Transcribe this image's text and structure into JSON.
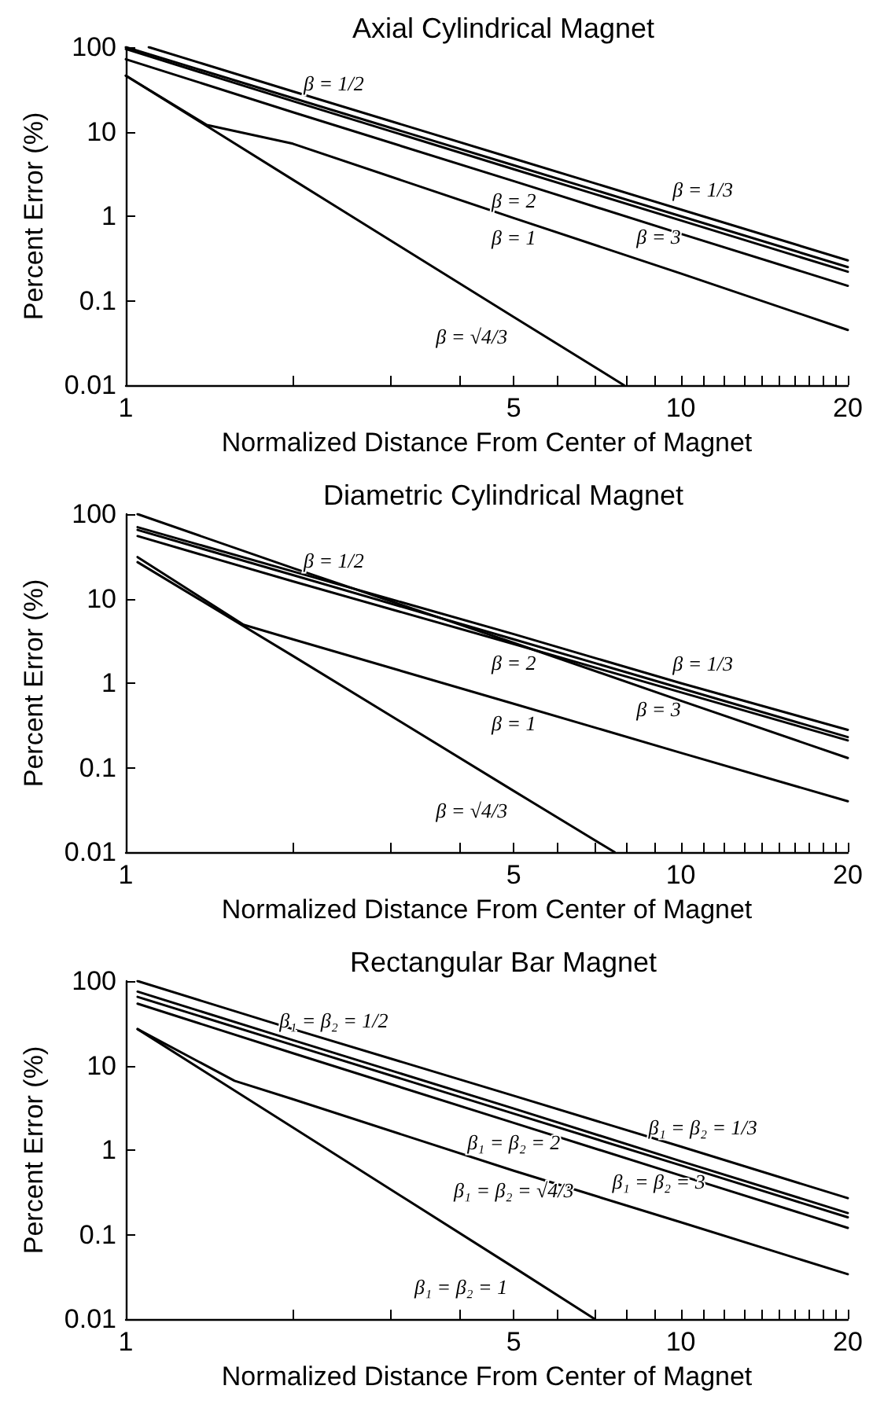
{
  "chart_data": [
    {
      "type": "line",
      "title": "Axial Cylindrical Magnet",
      "xlabel": "Normalized Distance From Center of Magnet",
      "ylabel": "Percent Error (%)",
      "log": "xy",
      "xlim": [
        1,
        20
      ],
      "ylim": [
        0.01,
        100
      ],
      "xticks": [
        1,
        {
          "value": 2,
          "label": null
        },
        {
          "value": 3,
          "label": null
        },
        {
          "value": 4,
          "label": null
        },
        5,
        {
          "value": 6,
          "label": null
        },
        {
          "value": 7,
          "label": null
        },
        {
          "value": 8,
          "label": null
        },
        {
          "value": 9,
          "label": null
        },
        10,
        {
          "value": 11,
          "label": null
        },
        {
          "value": 12,
          "label": null
        },
        {
          "value": 13,
          "label": null
        },
        {
          "value": 14,
          "label": null
        },
        {
          "value": 15,
          "label": null
        },
        {
          "value": 16,
          "label": null
        },
        {
          "value": 17,
          "label": null
        },
        {
          "value": 18,
          "label": null
        },
        {
          "value": 19,
          "label": null
        },
        20
      ],
      "yticks": [
        0.01,
        0.1,
        1,
        10,
        100
      ],
      "series": [
        {
          "name": "β = 1/3",
          "color": "#000000",
          "x": [
            1.1,
            2,
            5,
            10,
            20
          ],
          "values": [
            100,
            30,
            4.8,
            1.2,
            0.3
          ]
        },
        {
          "name": "β = 1/2",
          "color": "#000000",
          "x": [
            1,
            2,
            5,
            10,
            20
          ],
          "values": [
            100,
            25,
            4,
            1,
            0.25
          ]
        },
        {
          "name": "β = 3",
          "color": "#000000",
          "x": [
            1,
            2,
            5,
            10,
            20
          ],
          "values": [
            95,
            23,
            3.6,
            0.89,
            0.22
          ]
        },
        {
          "name": "β = 2",
          "color": "#000000",
          "x": [
            1,
            2,
            5,
            10,
            20
          ],
          "values": [
            72,
            17,
            2.6,
            0.62,
            0.15
          ]
        },
        {
          "name": "β = 1",
          "color": "#000000",
          "x": [
            1,
            1.4,
            2,
            5,
            10,
            20
          ],
          "values": [
            46,
            12,
            7.2,
            0.95,
            0.21,
            0.045
          ]
        },
        {
          "name": "β = √4/3",
          "color": "#000000",
          "x": [
            1,
            2,
            5,
            7.9
          ],
          "values": [
            46,
            2.7,
            0.064,
            0.01
          ]
        }
      ]
    },
    {
      "type": "line",
      "title": "Diametric Cylindrical Magnet",
      "xlabel": "Normalized Distance From Center of Magnet",
      "ylabel": "Percent Error (%)",
      "log": "xy",
      "xlim": [
        1,
        20
      ],
      "ylim": [
        0.01,
        100
      ],
      "xticks": [
        1,
        {
          "value": 2,
          "label": null
        },
        {
          "value": 3,
          "label": null
        },
        {
          "value": 4,
          "label": null
        },
        5,
        {
          "value": 6,
          "label": null
        },
        {
          "value": 7,
          "label": null
        },
        {
          "value": 8,
          "label": null
        },
        {
          "value": 9,
          "label": null
        },
        10,
        {
          "value": 11,
          "label": null
        },
        {
          "value": 12,
          "label": null
        },
        {
          "value": 13,
          "label": null
        },
        {
          "value": 14,
          "label": null
        },
        {
          "value": 15,
          "label": null
        },
        {
          "value": 16,
          "label": null
        },
        {
          "value": 17,
          "label": null
        },
        {
          "value": 18,
          "label": null
        },
        {
          "value": 19,
          "label": null
        },
        20
      ],
      "yticks": [
        0.01,
        0.1,
        1,
        10,
        100
      ],
      "series": [
        {
          "name": "β = 1/3",
          "color": "#000000",
          "x": [
            1.05,
            2,
            5,
            10,
            20
          ],
          "values": [
            70,
            21,
            3.8,
            1,
            0.28
          ]
        },
        {
          "name": "β = 1/2",
          "color": "#000000",
          "x": [
            1.05,
            2,
            5,
            10,
            20
          ],
          "values": [
            65,
            19,
            3.3,
            0.87,
            0.23
          ]
        },
        {
          "name": "β = 3",
          "color": "#000000",
          "x": [
            1.05,
            2,
            5,
            10,
            20
          ],
          "values": [
            55,
            16,
            2.9,
            0.78,
            0.21
          ]
        },
        {
          "name": "β = 2",
          "color": "#000000",
          "x": [
            1.05,
            2,
            5,
            10,
            20
          ],
          "values": [
            100,
            23,
            3,
            0.62,
            0.13
          ]
        },
        {
          "name": "β = 1",
          "color": "#000000",
          "x": [
            1.05,
            1.63,
            2,
            5,
            10,
            20
          ],
          "values": [
            31,
            4.9,
            3.3,
            0.57,
            0.15,
            0.04
          ]
        },
        {
          "name": "β = √4/3",
          "color": "#000000",
          "x": [
            1.05,
            2,
            5,
            7.6
          ],
          "values": [
            27,
            2.1,
            0.053,
            0.01
          ]
        }
      ]
    },
    {
      "type": "line",
      "title": "Rectangular Bar Magnet",
      "xlabel": "Normalized Distance From Center of Magnet",
      "ylabel": "Percent Error (%)",
      "log": "xy",
      "xlim": [
        1,
        20
      ],
      "ylim": [
        0.01,
        100
      ],
      "xticks": [
        1,
        {
          "value": 2,
          "label": null
        },
        {
          "value": 3,
          "label": null
        },
        {
          "value": 4,
          "label": null
        },
        5,
        {
          "value": 6,
          "label": null
        },
        {
          "value": 7,
          "label": null
        },
        {
          "value": 8,
          "label": null
        },
        {
          "value": 9,
          "label": null
        },
        10,
        {
          "value": 11,
          "label": null
        },
        {
          "value": 12,
          "label": null
        },
        {
          "value": 13,
          "label": null
        },
        {
          "value": 14,
          "label": null
        },
        {
          "value": 15,
          "label": null
        },
        {
          "value": 16,
          "label": null
        },
        {
          "value": 17,
          "label": null
        },
        {
          "value": 18,
          "label": null
        },
        {
          "value": 19,
          "label": null
        },
        20
      ],
      "yticks": [
        0.01,
        0.1,
        1,
        10,
        100
      ],
      "series": [
        {
          "name": "β₁ = β₂ = 1/3",
          "color": "#000000",
          "x": [
            1.05,
            2,
            5,
            10,
            20
          ],
          "values": [
            100,
            27,
            4.4,
            1.1,
            0.27
          ]
        },
        {
          "name": "β₁ = β₂ = 1/2",
          "color": "#000000",
          "x": [
            1.05,
            2,
            5,
            10,
            20
          ],
          "values": [
            75,
            20,
            3.1,
            0.74,
            0.18
          ]
        },
        {
          "name": "β₁ = β₂ = 3",
          "color": "#000000",
          "x": [
            1.05,
            2,
            5,
            10,
            20
          ],
          "values": [
            65,
            17.5,
            2.7,
            0.66,
            0.16
          ]
        },
        {
          "name": "β₁ = β₂ = 2",
          "color": "#000000",
          "x": [
            1.05,
            2,
            5,
            10,
            20
          ],
          "values": [
            54,
            14,
            2.1,
            0.5,
            0.12
          ]
        },
        {
          "name": "β₁ = β₂ = √4/3",
          "color": "#000000",
          "x": [
            1.05,
            1.57,
            2,
            5,
            10,
            20
          ],
          "values": [
            27,
            6.6,
            4,
            0.57,
            0.14,
            0.034
          ]
        },
        {
          "name": "β₁ = β₂ = 1",
          "color": "#000000",
          "x": [
            1.05,
            2,
            5,
            7
          ],
          "values": [
            27,
            1.85,
            0.041,
            0.01
          ]
        }
      ]
    }
  ]
}
